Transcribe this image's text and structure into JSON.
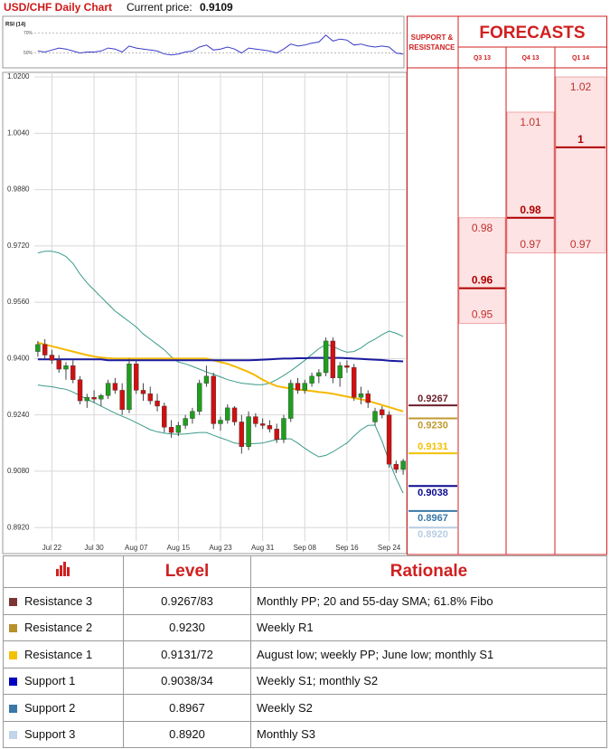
{
  "header": {
    "title": "USD/CHF Daily Chart",
    "price_label": "Current price:",
    "price": "0.9109"
  },
  "chart_data": [
    {
      "type": "line",
      "title": "RSI (14)",
      "ylim": [
        35,
        87
      ],
      "yticks": [
        {
          "value": 70,
          "label": "70%"
        },
        {
          "value": 50,
          "label": "50%"
        }
      ],
      "series": [
        {
          "color": "#3b3bc8",
          "values": [
            52,
            51,
            53,
            55,
            54,
            52,
            50,
            51,
            51,
            52,
            55,
            54,
            51,
            57,
            55,
            54,
            53,
            52,
            49,
            48,
            49,
            51,
            52,
            56,
            58,
            53,
            54,
            56,
            54,
            50,
            55,
            54,
            53,
            52,
            50,
            54,
            59,
            57,
            58,
            60,
            61,
            68,
            62,
            64,
            63,
            58,
            59,
            57,
            56,
            57,
            56,
            50,
            49
          ]
        }
      ]
    },
    {
      "type": "candlestick",
      "categories": [
        null,
        null,
        "Jul 22",
        null,
        null,
        null,
        null,
        null,
        "Jul 30",
        null,
        null,
        null,
        null,
        null,
        "Aug 07",
        null,
        null,
        null,
        null,
        null,
        "Aug 15",
        null,
        null,
        null,
        null,
        null,
        "Aug 23",
        null,
        null,
        null,
        null,
        null,
        "Aug 31",
        null,
        null,
        null,
        null,
        null,
        "Sep 08",
        null,
        null,
        null,
        null,
        null,
        "Sep 16",
        null,
        null,
        null,
        null,
        null,
        "Sep 24",
        null,
        null
      ],
      "open": [
        0.942,
        0.944,
        0.941,
        0.9395,
        0.937,
        0.938,
        0.934,
        0.928,
        0.929,
        0.9285,
        0.9295,
        0.933,
        0.931,
        0.9255,
        0.9385,
        0.931,
        0.93,
        0.928,
        0.9265,
        0.9205,
        0.919,
        0.921,
        0.923,
        0.925,
        0.933,
        0.935,
        0.9215,
        0.9225,
        0.926,
        0.922,
        0.915,
        0.9235,
        0.9215,
        0.921,
        0.92,
        0.917,
        0.923,
        0.933,
        0.931,
        0.933,
        0.935,
        0.936,
        0.945,
        0.9345,
        0.938,
        0.9375,
        0.929,
        0.93,
        0.922,
        0.9255,
        0.924,
        0.91,
        0.9085
      ],
      "high": [
        0.945,
        0.9455,
        0.9425,
        0.941,
        0.939,
        0.9395,
        0.935,
        0.93,
        0.931,
        0.93,
        0.934,
        0.9345,
        0.933,
        0.94,
        0.9395,
        0.933,
        0.932,
        0.93,
        0.9275,
        0.9225,
        0.922,
        0.924,
        0.926,
        0.934,
        0.938,
        0.936,
        0.9235,
        0.927,
        0.9265,
        0.924,
        0.925,
        0.9245,
        0.923,
        0.9225,
        0.9215,
        0.924,
        0.934,
        0.9345,
        0.934,
        0.936,
        0.937,
        0.946,
        0.946,
        0.939,
        0.9395,
        0.9385,
        0.932,
        0.931,
        0.926,
        0.9265,
        0.925,
        0.911,
        0.9115
      ],
      "low": [
        0.9405,
        0.94,
        0.9385,
        0.936,
        0.934,
        0.933,
        0.927,
        0.926,
        0.9275,
        0.9265,
        0.9285,
        0.93,
        0.924,
        0.9245,
        0.93,
        0.928,
        0.927,
        0.925,
        0.919,
        0.9175,
        0.918,
        0.92,
        0.9215,
        0.924,
        0.932,
        0.92,
        0.9195,
        0.9215,
        0.921,
        0.913,
        0.914,
        0.9205,
        0.92,
        0.919,
        0.916,
        0.916,
        0.922,
        0.93,
        0.93,
        0.932,
        0.933,
        0.935,
        0.933,
        0.932,
        0.936,
        0.928,
        0.927,
        0.926,
        0.921,
        0.923,
        0.909,
        0.9075,
        0.907
      ],
      "close": [
        0.944,
        0.941,
        0.9395,
        0.937,
        0.938,
        0.934,
        0.928,
        0.929,
        0.9285,
        0.9295,
        0.933,
        0.931,
        0.9255,
        0.9385,
        0.931,
        0.93,
        0.928,
        0.9265,
        0.9205,
        0.919,
        0.921,
        0.923,
        0.925,
        0.933,
        0.935,
        0.9215,
        0.9225,
        0.926,
        0.922,
        0.915,
        0.9235,
        0.9215,
        0.921,
        0.92,
        0.917,
        0.923,
        0.933,
        0.931,
        0.933,
        0.935,
        0.936,
        0.945,
        0.9345,
        0.938,
        0.9375,
        0.929,
        0.93,
        0.9275,
        0.925,
        0.924,
        0.91,
        0.9085,
        0.9109
      ],
      "up_color": "#1e9e1e",
      "down_color": "#d01010",
      "overlays": [
        {
          "color": "#3a9a8a",
          "values": [
            0.97,
            0.9705,
            0.9705,
            0.97,
            0.969,
            0.967,
            0.964,
            0.9615,
            0.9595,
            0.9575,
            0.9555,
            0.9535,
            0.952,
            0.9505,
            0.949,
            0.947,
            0.9455,
            0.944,
            0.9425,
            0.9405,
            0.939,
            0.9385,
            0.9378,
            0.937,
            0.9362,
            0.9355,
            0.9348,
            0.934,
            0.9335,
            0.933,
            0.9328,
            0.9326,
            0.9326,
            0.933,
            0.934,
            0.9352,
            0.9365,
            0.938,
            0.9395,
            0.9412,
            0.9428,
            0.944,
            0.9435,
            0.9425,
            0.9418,
            0.942,
            0.943,
            0.9445,
            0.9455,
            0.9468,
            0.9478,
            0.9472,
            0.9463
          ]
        },
        {
          "color": "#3a9a8a",
          "values": [
            0.9325,
            0.9322,
            0.932,
            0.9316,
            0.9313,
            0.9305,
            0.9295,
            0.9285,
            0.9275,
            0.9265,
            0.9255,
            0.9245,
            0.9236,
            0.9228,
            0.9218,
            0.9208,
            0.9198,
            0.9192,
            0.9188,
            0.9186,
            0.9185,
            0.9186,
            0.9188,
            0.919,
            0.919,
            0.9182,
            0.9175,
            0.9168,
            0.916,
            0.9158,
            0.9158,
            0.9159,
            0.916,
            0.9165,
            0.917,
            0.9172,
            0.9172,
            0.916,
            0.9145,
            0.9132,
            0.9121,
            0.9125,
            0.9135,
            0.9148,
            0.916,
            0.918,
            0.9198,
            0.921,
            0.9211,
            0.9165,
            0.9108,
            0.906,
            0.9018
          ]
        },
        {
          "color": "#f5b800",
          "values": [
            0.9445,
            0.944,
            0.9435,
            0.943,
            0.9425,
            0.942,
            0.9415,
            0.941,
            0.9406,
            0.9403,
            0.9401,
            0.94,
            0.94,
            0.94,
            0.94,
            0.94,
            0.94,
            0.94,
            0.94,
            0.94,
            0.94,
            0.94,
            0.94,
            0.94,
            0.94,
            0.9395,
            0.939,
            0.9385,
            0.9378,
            0.937,
            0.9362,
            0.9352,
            0.934,
            0.933,
            0.9322,
            0.9318,
            0.9315,
            0.9312,
            0.931,
            0.9308,
            0.9305,
            0.9303,
            0.93,
            0.9296,
            0.9292,
            0.9288,
            0.9284,
            0.928,
            0.9274,
            0.9268,
            0.9262,
            0.9256,
            0.925
          ]
        },
        {
          "color": "#1a1aa0",
          "values": [
            0.9398,
            0.9398,
            0.9398,
            0.9398,
            0.9398,
            0.9398,
            0.9398,
            0.9398,
            0.9398,
            0.9398,
            0.9395,
            0.9395,
            0.9395,
            0.9395,
            0.9395,
            0.9395,
            0.9395,
            0.9395,
            0.9395,
            0.9395,
            0.9395,
            0.9395,
            0.9395,
            0.9395,
            0.9395,
            0.9395,
            0.9395,
            0.9395,
            0.9395,
            0.9395,
            0.9395,
            0.9396,
            0.9397,
            0.9398,
            0.9399,
            0.94,
            0.94,
            0.9401,
            0.9401,
            0.9402,
            0.9402,
            0.9402,
            0.9402,
            0.9402,
            0.9401,
            0.94,
            0.9399,
            0.9398,
            0.9397,
            0.9396,
            0.9394,
            0.9393,
            0.9392
          ]
        }
      ],
      "ylim": [
        0.8846,
        1.0213
      ],
      "yticks": [
        {
          "value": 1.02,
          "label": "1.0200"
        },
        {
          "value": 1.004,
          "label": "1.0040"
        },
        {
          "value": 0.988,
          "label": "0.9880"
        },
        {
          "value": 0.972,
          "label": "0.9720"
        },
        {
          "value": 0.956,
          "label": "0.9560"
        },
        {
          "value": 0.94,
          "label": "0.9400"
        },
        {
          "value": 0.924,
          "label": "0.9240"
        },
        {
          "value": 0.908,
          "label": "0.9080"
        },
        {
          "value": 0.892,
          "label": "0.8920"
        }
      ],
      "grid": true,
      "levels": [
        {
          "value": 0.9267,
          "label": "0.9267",
          "color": "#6b1f2a"
        },
        {
          "value": 0.923,
          "label": "0.9230",
          "color": "#c09a30"
        },
        {
          "value": 0.9131,
          "label": "0.9131",
          "color": "#f2c200"
        },
        {
          "value": 0.9038,
          "label": "0.9038",
          "color": "#0a0a90"
        },
        {
          "value": 0.8967,
          "label": "0.8967",
          "color": "#3a78a8"
        },
        {
          "value": 0.892,
          "label": "0.8920",
          "color": "#b8cde4"
        }
      ]
    },
    {
      "type": "forecast",
      "title": "FORECASTS",
      "side_title": [
        "SUPPORT &",
        "RESISTANCE"
      ],
      "categories": [
        "Q3 13",
        "Q4 13",
        "Q1 14"
      ],
      "high": [
        0.98,
        1.01,
        1.02
      ],
      "mid": [
        0.96,
        0.98,
        1
      ],
      "low": [
        0.95,
        0.97,
        0.97
      ],
      "ylim": [
        0.8846,
        1.0213
      ]
    }
  ],
  "table": {
    "columns": [
      "Level",
      "Rationale"
    ],
    "rows": [
      {
        "name": "Resistance 3",
        "color": "#7b3535",
        "level": "0.9267/83",
        "rationale": "Monthly PP; 20 and 55-day SMA; 61.8% Fibo"
      },
      {
        "name": "Resistance 2",
        "color": "#b8902c",
        "level": "0.9230",
        "rationale": "Weekly R1"
      },
      {
        "name": "Resistance 1",
        "color": "#f2c200",
        "level": "0.9131/72",
        "rationale": "August low; weekly PP; June low; monthly S1"
      },
      {
        "name": "Support 1",
        "color": "#0000c0",
        "level": "0.9038/34",
        "rationale": "Weekly S1; monthly S2"
      },
      {
        "name": "Support 2",
        "color": "#3b78a8",
        "level": "0.8967",
        "rationale": "Weekly S2"
      },
      {
        "name": "Support 3",
        "color": "#c0d4ea",
        "level": "0.8920",
        "rationale": "Monthly S3"
      }
    ]
  }
}
